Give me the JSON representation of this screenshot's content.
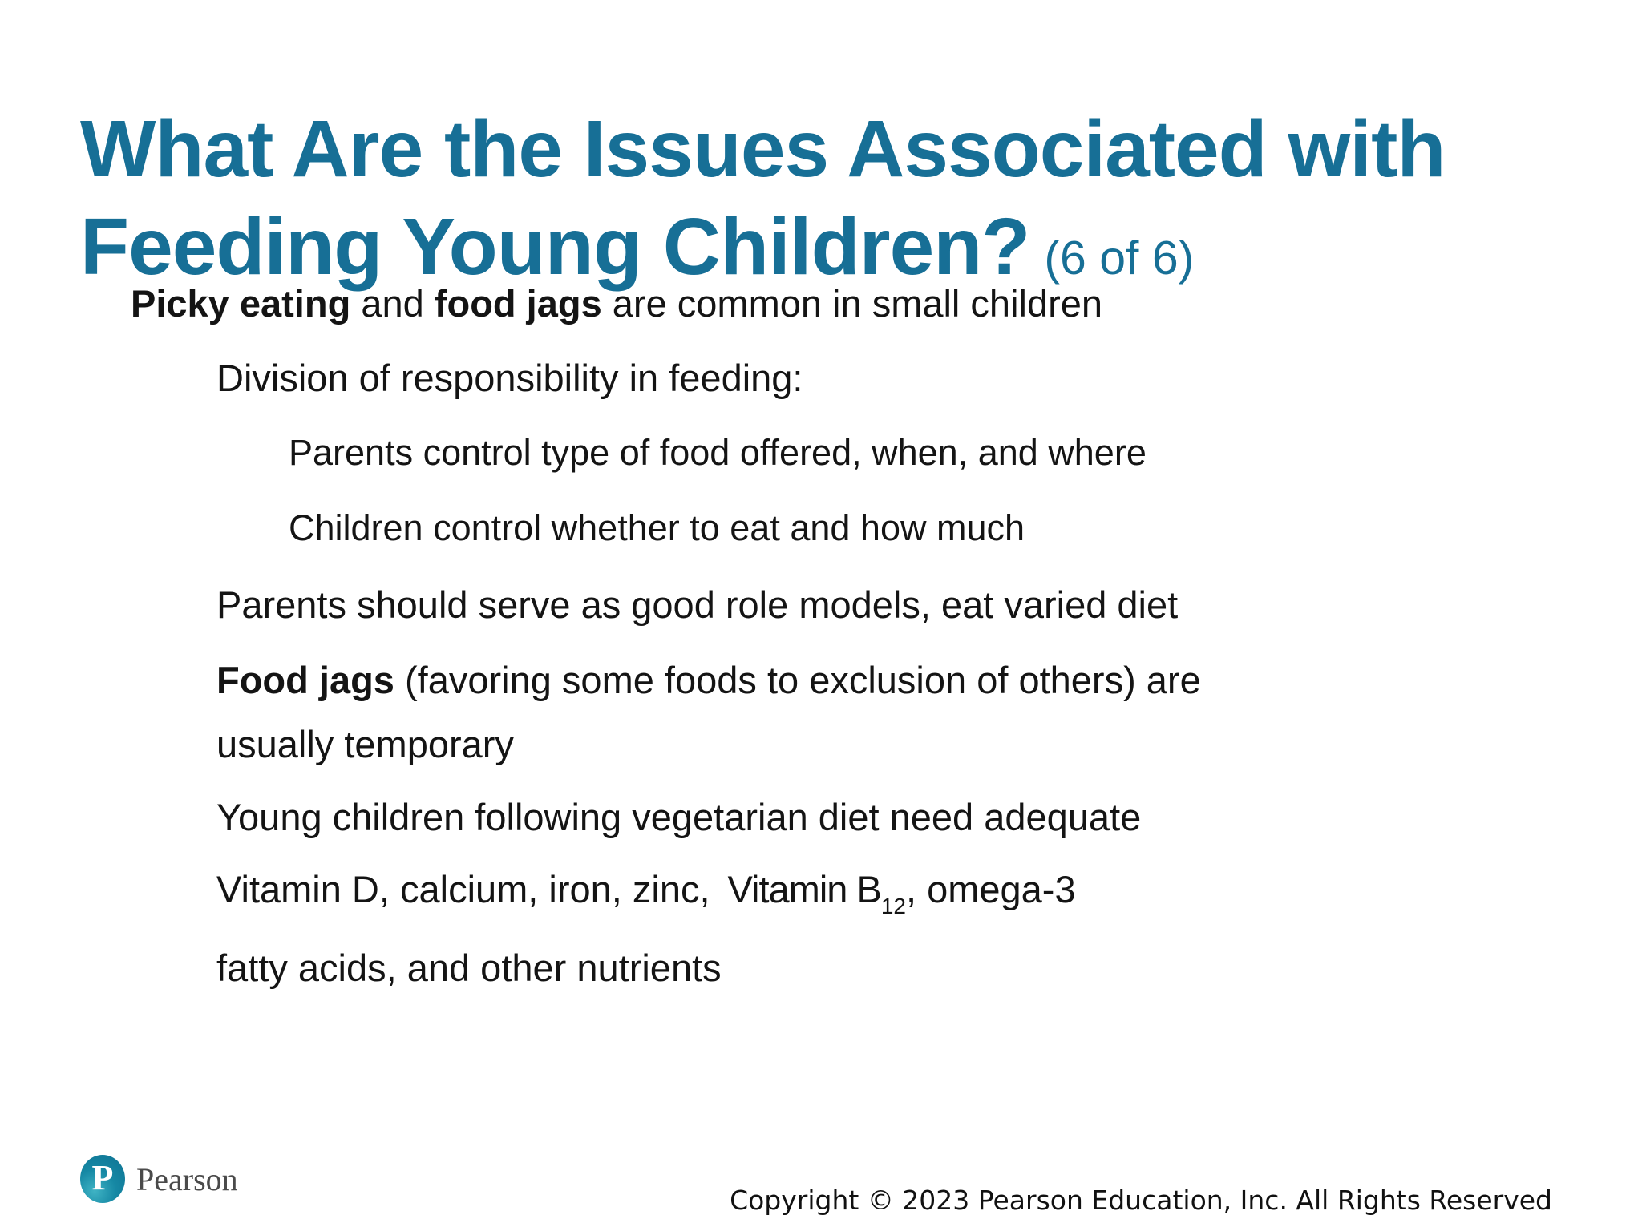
{
  "title": {
    "line1": "What Are the Issues Associated with",
    "line2": "Feeding Young Children?",
    "counter": "(6 of 6)"
  },
  "colors": {
    "accent_teal": "#176f96",
    "marker_teal": "#1878a0",
    "body_text": "#141414",
    "brand_gray": "#4a4a4a"
  },
  "bullets": {
    "picky": {
      "bold1": "Picky eating",
      "sep": " and ",
      "bold2": "food jags",
      "rest": " are common in small children"
    },
    "division": {
      "text": "Division of responsibility in feeding:"
    },
    "parents_control": {
      "text": "Parents control type of food offered, when, and where"
    },
    "children_control": {
      "text": "Children control whether to eat and how much"
    },
    "role_models": {
      "text": "Parents should serve as good role models, eat varied diet"
    },
    "food_jags": {
      "bold": "Food jags",
      "rest_line1": " (favoring some foods to exclusion of others) are",
      "line2": "usually temporary"
    },
    "vegetarian": {
      "line1": "Young children following vegetarian diet need adequate",
      "line2_pre": "Vitamin D, calcium, iron, zinc,",
      "eq_base": "Vitamin B",
      "eq_sub": "12",
      "line2_post": ", omega-3",
      "line3": "fatty acids, and other nutrients"
    }
  },
  "footer": {
    "logo_letter": "P",
    "brand": "Pearson",
    "copyright": "Copyright © 2023 Pearson Education, Inc. All Rights Reserved"
  }
}
